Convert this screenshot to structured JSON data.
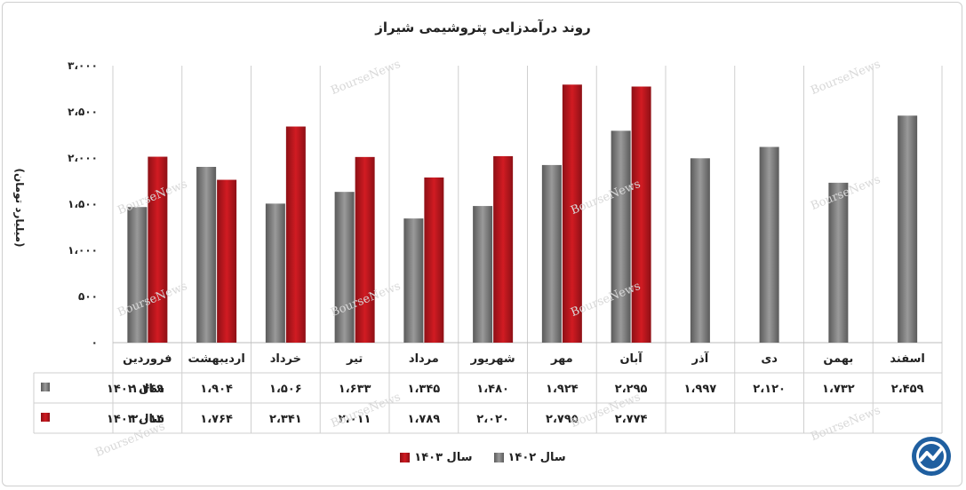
{
  "chart_data": {
    "type": "bar",
    "title": "روند درآمدزایی پتروشیمی شیراز",
    "ylabel": "(میلیارد تومان)",
    "ylim": [
      0,
      3000
    ],
    "yticks": [
      0,
      500,
      1000,
      1500,
      2000,
      2500,
      3000
    ],
    "ytick_labels": [
      "۰",
      "۵۰۰",
      "۱،۰۰۰",
      "۱،۵۰۰",
      "۲،۰۰۰",
      "۲،۵۰۰",
      "۳،۰۰۰"
    ],
    "grid": "vertical",
    "legend_position": "bottom",
    "categories": [
      "فروردین",
      "اردیبهشت",
      "خرداد",
      "تیر",
      "مرداد",
      "شهریور",
      "مهر",
      "آبان",
      "آذر",
      "دی",
      "بهمن",
      "اسفند"
    ],
    "series": [
      {
        "name": "سال ۱۴۰۲",
        "color": "#7a7a7a",
        "values": [
          1469,
          1904,
          1506,
          1633,
          1345,
          1480,
          1924,
          2295,
          1997,
          2120,
          1732,
          2459
        ],
        "labels": [
          "۱،۴۶۹",
          "۱،۹۰۴",
          "۱،۵۰۶",
          "۱،۶۳۳",
          "۱،۳۴۵",
          "۱،۴۸۰",
          "۱،۹۲۴",
          "۲،۲۹۵",
          "۱،۹۹۷",
          "۲،۱۲۰",
          "۱،۷۳۲",
          "۲،۴۵۹"
        ]
      },
      {
        "name": "سال ۱۴۰۳",
        "color": "#c0161c",
        "values": [
          2014,
          1764,
          2341,
          2011,
          1789,
          2020,
          2795,
          2774,
          null,
          null,
          null,
          null
        ],
        "labels": [
          "۲،۰۱۴",
          "۱،۷۶۴",
          "۲،۳۴۱",
          "۲،۰۱۱",
          "۱،۷۸۹",
          "۲،۰۲۰",
          "۲،۷۹۵",
          "۲،۷۷۴",
          "",
          "",
          "",
          ""
        ]
      }
    ]
  },
  "watermark": "BourseNews",
  "logo_icon": "boursenews-logo-icon"
}
